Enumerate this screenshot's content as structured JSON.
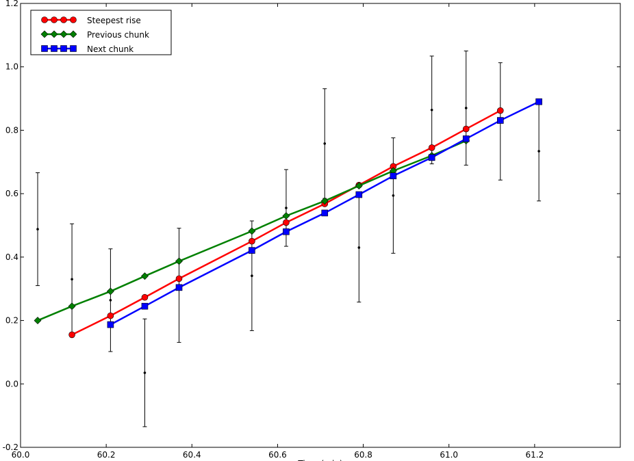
{
  "chart_data": {
    "type": "line",
    "xlabel": "Time (min)",
    "xlim": [
      60.0,
      61.4
    ],
    "ylim": [
      -0.2,
      1.2
    ],
    "xticks": [
      {
        "value": 60.0,
        "label": "60.0"
      },
      {
        "value": 60.2,
        "label": "60.2"
      },
      {
        "value": 60.4,
        "label": "60.4"
      },
      {
        "value": 60.6,
        "label": "60.6"
      },
      {
        "value": 60.8,
        "label": "60.8"
      },
      {
        "value": 61.0,
        "label": "61.0"
      },
      {
        "value": 61.2,
        "label": "61.2"
      }
    ],
    "yticks": [
      -0.2,
      {
        "value": 0.0,
        "label": "0.0"
      },
      0.2,
      0.4,
      0.6,
      0.8,
      {
        "value": 1.0,
        "label": "1.0"
      },
      1.2
    ],
    "legend": "upper left",
    "series": [
      {
        "name": "Steepest rise",
        "color": "#ff0000",
        "marker": "circle",
        "x": [
          60.12,
          60.21,
          60.29,
          60.37,
          60.54,
          60.62,
          60.71,
          60.79,
          60.87,
          60.96,
          61.04,
          61.12
        ],
        "values": [
          0.155,
          0.215,
          0.273,
          0.332,
          0.45,
          0.509,
          0.568,
          0.627,
          0.686,
          0.745,
          0.804,
          0.862
        ]
      },
      {
        "name": "Previous chunk",
        "color": "#008000",
        "marker": "diamond",
        "x": [
          60.04,
          60.12,
          60.21,
          60.29,
          60.37,
          60.54,
          60.62,
          60.71,
          60.79,
          60.87,
          60.96,
          61.04
        ],
        "values": [
          0.2,
          0.245,
          0.292,
          0.34,
          0.387,
          0.482,
          0.53,
          0.577,
          0.625,
          0.672,
          0.72,
          0.767
        ]
      },
      {
        "name": "Next chunk",
        "color": "#0000ff",
        "marker": "square",
        "x": [
          60.21,
          60.29,
          60.37,
          60.54,
          60.62,
          60.71,
          60.79,
          60.87,
          60.96,
          61.04,
          61.12,
          61.21
        ],
        "values": [
          0.187,
          0.245,
          0.304,
          0.421,
          0.48,
          0.539,
          0.597,
          0.656,
          0.714,
          0.773,
          0.831,
          0.89
        ]
      }
    ],
    "errorbars": {
      "color": "#000000",
      "x": [
        60.04,
        60.12,
        60.21,
        60.29,
        60.37,
        60.54,
        60.62,
        60.71,
        60.79,
        60.87,
        60.96,
        61.04,
        61.12,
        61.21
      ],
      "values": [
        0.488,
        0.33,
        0.264,
        0.035,
        0.311,
        0.341,
        0.555,
        0.758,
        0.43,
        0.594,
        0.864,
        0.87,
        0.828,
        0.734
      ],
      "errors": [
        0.178,
        0.175,
        0.162,
        0.17,
        0.18,
        0.173,
        0.121,
        0.173,
        0.172,
        0.182,
        0.17,
        0.18,
        0.185,
        0.157
      ]
    }
  }
}
